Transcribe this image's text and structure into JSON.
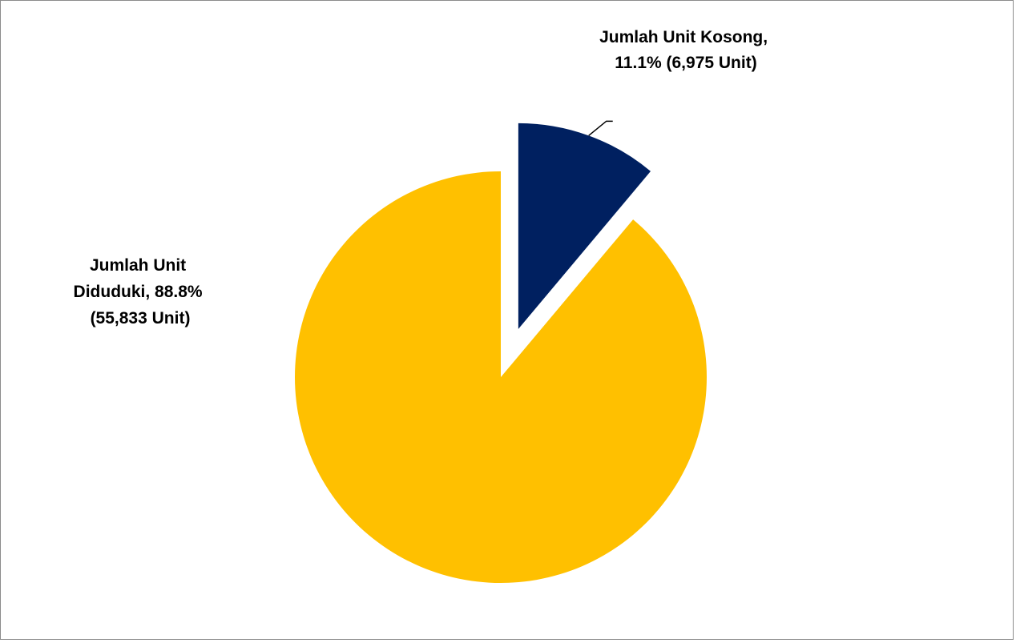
{
  "chart_data": {
    "type": "pie",
    "title": "",
    "slices": [
      {
        "category": "Jumlah Unit Kosong",
        "percent": 11.1,
        "units": 6975,
        "color": "#002060",
        "exploded": true,
        "label_lines": [
          "Jumlah Unit Kosong,",
          "11.1% (6,975 Unit)"
        ]
      },
      {
        "category": "Jumlah Unit Diduduki",
        "percent": 88.8,
        "units": 55833,
        "color": "#FFC000",
        "exploded": false,
        "label_lines": [
          "Jumlah Unit",
          "Diduduki, 88.8%",
          "(55,833 Unit)"
        ]
      }
    ],
    "legend": "none",
    "start_angle_deg": 0,
    "direction": "clockwise"
  }
}
